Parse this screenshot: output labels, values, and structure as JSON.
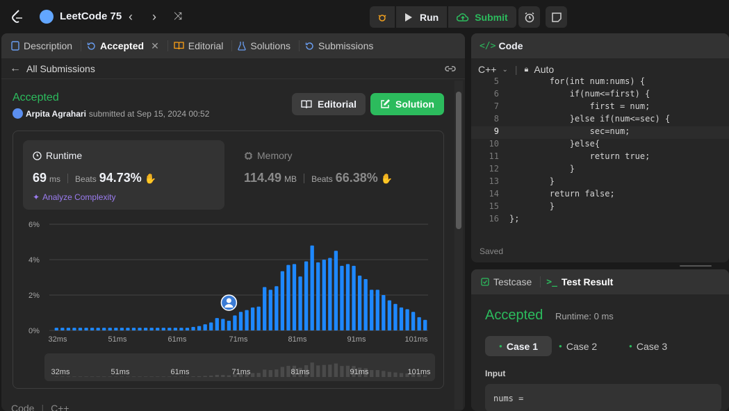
{
  "topbar": {
    "list_title": "LeetCode 75",
    "run": "Run",
    "submit": "Submit"
  },
  "left": {
    "tabs": [
      {
        "label": "Description"
      },
      {
        "label": "Accepted"
      },
      {
        "label": "Editorial"
      },
      {
        "label": "Solutions"
      },
      {
        "label": "Submissions"
      }
    ],
    "all_submissions": "All Submissions",
    "status": "Accepted",
    "user": "Arpita Agrahari",
    "submitted_text": "submitted at Sep 15, 2024 00:52",
    "editorial_btn": "Editorial",
    "solution_btn": "Solution",
    "runtime": {
      "title": "Runtime",
      "value": "69",
      "unit": "ms",
      "beats_label": "Beats",
      "beats": "94.73%",
      "analyze": "Analyze Complexity"
    },
    "memory": {
      "title": "Memory",
      "value": "114.49",
      "unit": "MB",
      "beats_label": "Beats",
      "beats": "66.38%"
    },
    "bottom_tabs": {
      "code": "Code",
      "lang": "C++"
    }
  },
  "chart_data": {
    "type": "bar",
    "ylabel": "",
    "xlabel": "",
    "yticks": [
      "0%",
      "2%",
      "4%",
      "6%"
    ],
    "ylim": [
      0,
      6
    ],
    "xticks": [
      "32ms",
      "51ms",
      "61ms",
      "71ms",
      "81ms",
      "91ms",
      "101ms"
    ],
    "user_value_ms": 69,
    "values": [
      0.15,
      0.15,
      0.15,
      0.15,
      0.15,
      0.15,
      0.15,
      0.15,
      0.15,
      0.15,
      0.15,
      0.15,
      0.15,
      0.15,
      0.15,
      0.15,
      0.15,
      0.15,
      0.15,
      0.15,
      0.15,
      0.15,
      0.15,
      0.2,
      0.25,
      0.35,
      0.45,
      0.7,
      0.65,
      0.55,
      0.85,
      1.05,
      1.15,
      1.3,
      1.35,
      2.45,
      2.3,
      2.5,
      3.35,
      3.7,
      3.75,
      3.05,
      3.9,
      4.8,
      3.85,
      4.0,
      4.1,
      4.5,
      3.65,
      3.75,
      3.65,
      3.1,
      2.9,
      2.3,
      2.3,
      2.0,
      1.7,
      1.5,
      1.3,
      1.2,
      1.05,
      0.75,
      0.6
    ],
    "user_bar_index": 29
  },
  "code_panel": {
    "title": "Code",
    "lang": "C++",
    "mode": "Auto",
    "saved": "Saved",
    "lines": [
      {
        "n": "5",
        "t": "        for(int num:nums) {"
      },
      {
        "n": "6",
        "t": "            if(num<=first) {"
      },
      {
        "n": "7",
        "t": "                first = num;"
      },
      {
        "n": "8",
        "t": "            }else if(num<=sec) {"
      },
      {
        "n": "9",
        "t": "                sec=num;"
      },
      {
        "n": "10",
        "t": "            }else{"
      },
      {
        "n": "11",
        "t": "                return true;"
      },
      {
        "n": "12",
        "t": "            }"
      },
      {
        "n": "13",
        "t": "        }"
      },
      {
        "n": "14",
        "t": "        return false;"
      },
      {
        "n": "15",
        "t": "        }"
      },
      {
        "n": "16",
        "t": "};"
      }
    ]
  },
  "test_panel": {
    "tab_testcase": "Testcase",
    "tab_result": "Test Result",
    "status": "Accepted",
    "runtime": "Runtime: 0 ms",
    "cases": [
      "Case 1",
      "Case 2",
      "Case 3"
    ],
    "input_label": "Input",
    "input_value": "nums ="
  },
  "colors": {
    "accent_green": "#2cbb5d",
    "bar_blue": "#1e88ff",
    "bg": "#1a1a1a",
    "panel": "#262626"
  }
}
